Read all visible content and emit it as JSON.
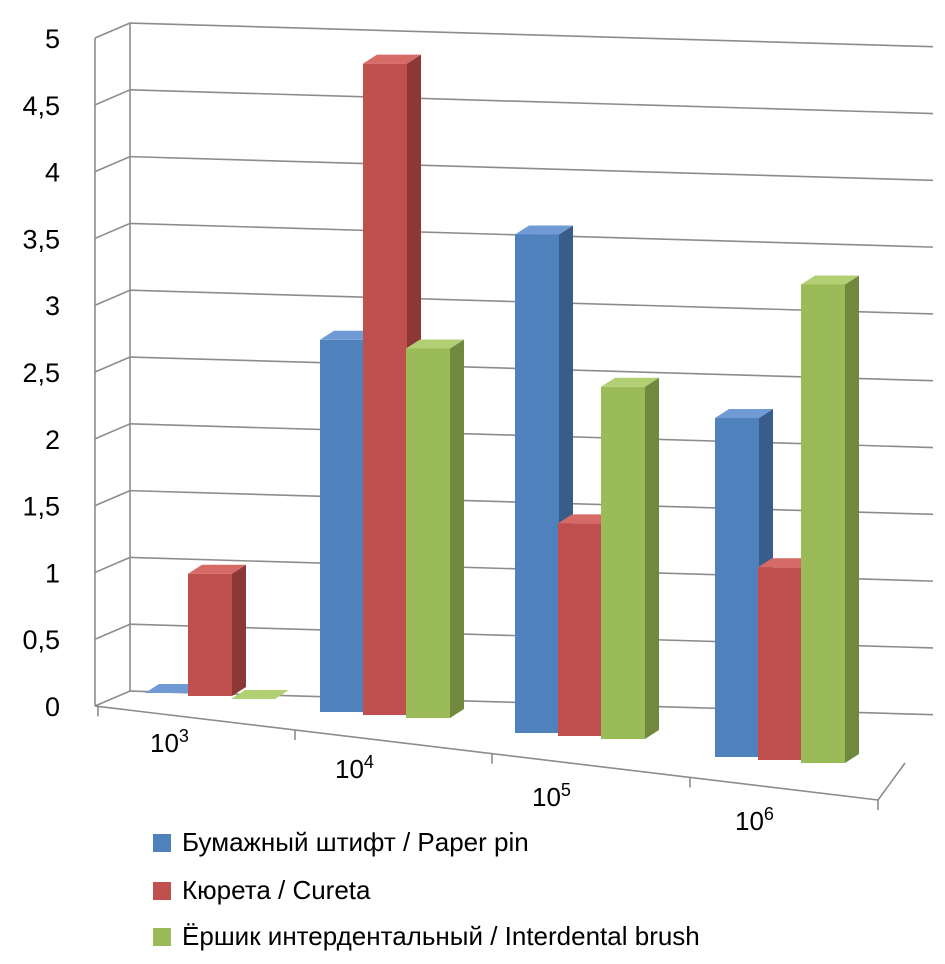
{
  "colors": {
    "series": [
      "#4f81bd",
      "#c0504d",
      "#9bbb59"
    ],
    "side": [
      "#385d8a",
      "#8c3836",
      "#71893f"
    ],
    "top": [
      "#6f9ad4",
      "#d56a67",
      "#b3cf74"
    ]
  },
  "chart_data": {
    "type": "bar",
    "title": "",
    "xlabel": "",
    "ylabel": "",
    "ylim": [
      0,
      5
    ],
    "grid": true,
    "legend_position": "bottom-left",
    "yticks": [
      "0",
      "0,5",
      "1",
      "1,5",
      "2",
      "2,5",
      "3",
      "3,5",
      "4",
      "4,5",
      "5"
    ],
    "categories": [
      {
        "base": "10",
        "exp": "3"
      },
      {
        "base": "10",
        "exp": "4"
      },
      {
        "base": "10",
        "exp": "5"
      },
      {
        "base": "10",
        "exp": "6"
      }
    ],
    "series": [
      {
        "name": "Бумажный штифт / Paper pin",
        "values": [
          0.0,
          2.8,
          3.75,
          2.55
        ]
      },
      {
        "name": "Кюрета / Cureta",
        "values": [
          0.92,
          4.9,
          1.6,
          1.45
        ]
      },
      {
        "name": "Ёршик интердентальный / Interdental brush",
        "values": [
          0.0,
          2.78,
          2.65,
          3.6
        ]
      }
    ]
  }
}
